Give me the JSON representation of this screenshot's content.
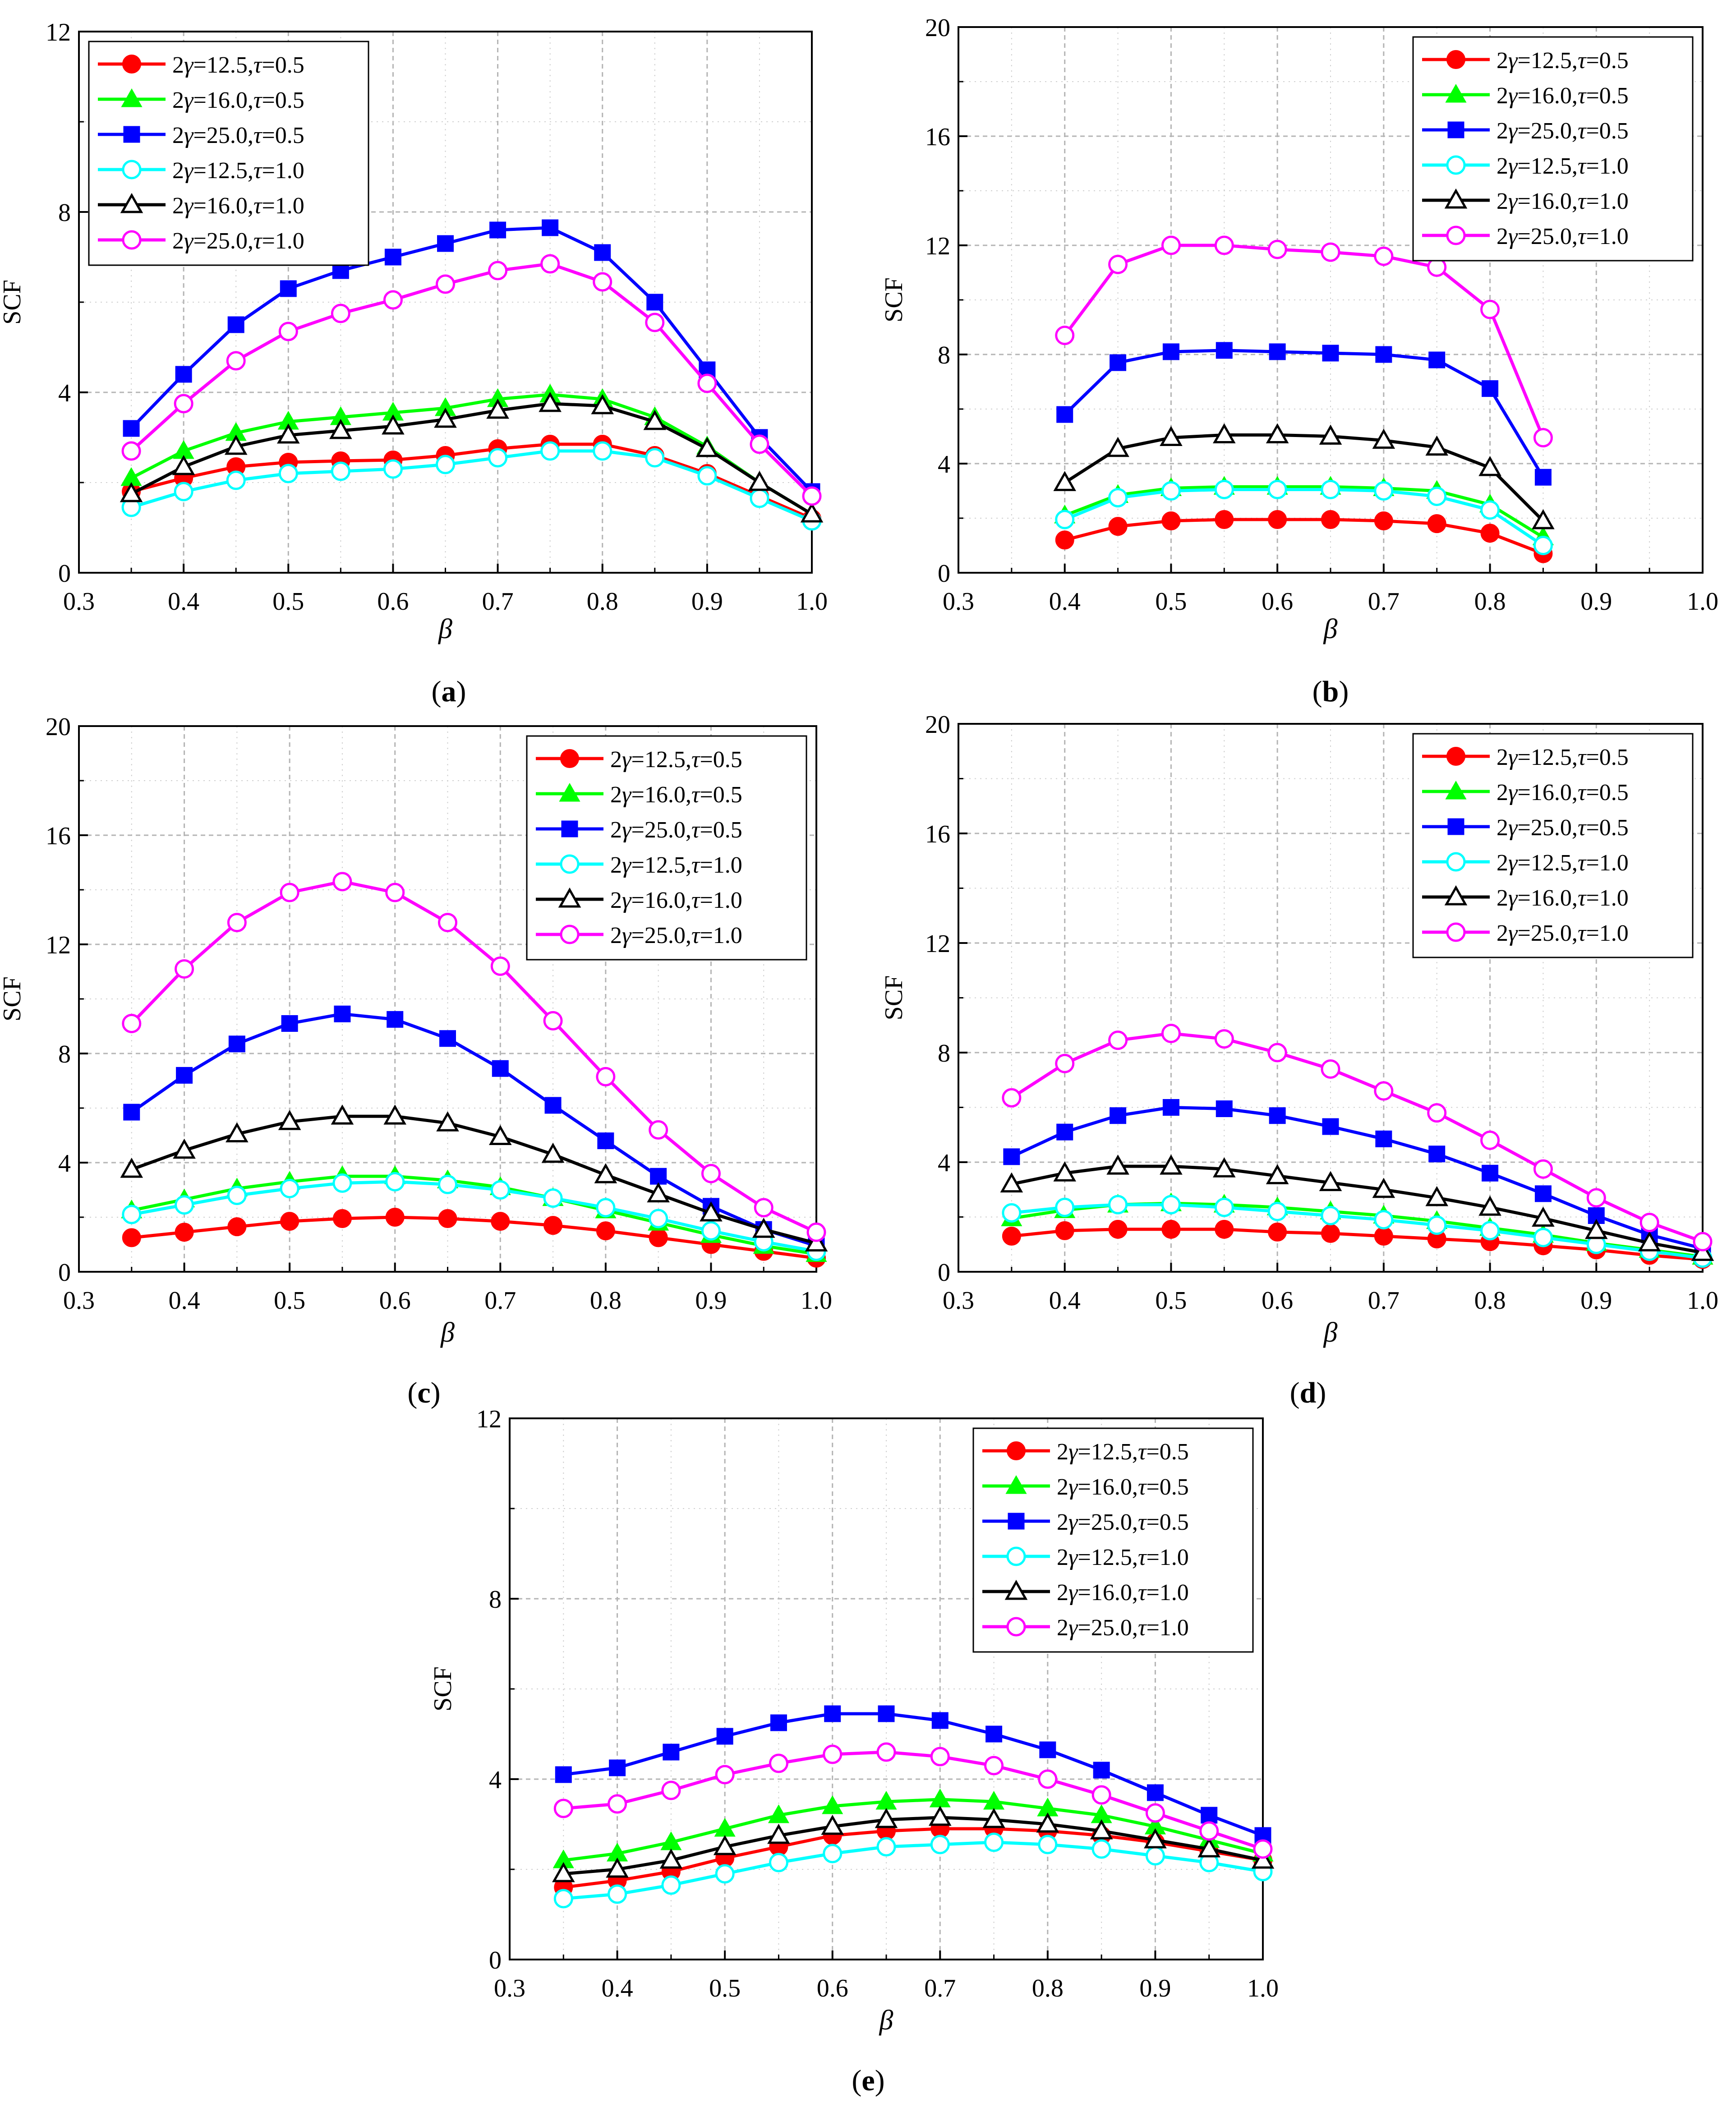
{
  "figure": {
    "legend_entries": [
      {
        "gamma": "12.5",
        "tau": "0.5"
      },
      {
        "gamma": "16.0",
        "tau": "0.5"
      },
      {
        "gamma": "25.0",
        "tau": "0.5"
      },
      {
        "gamma": "12.5",
        "tau": "1.0"
      },
      {
        "gamma": "16.0",
        "tau": "1.0"
      },
      {
        "gamma": "25.0",
        "tau": "1.0"
      }
    ],
    "legend_prefix": "2",
    "legend_gamma_symbol": "γ",
    "legend_tau_symbol": "τ",
    "legend_equals": "=",
    "legend_separator": ",",
    "colors": [
      "#ff0000",
      "#00ff00",
      "#0000ff",
      "#00ffff",
      "#000000",
      "#ff00ff"
    ],
    "markers": [
      "circle-filled",
      "triangle-filled",
      "square-filled",
      "circle-open",
      "triangle-open",
      "circle-open"
    ]
  },
  "chart_data": [
    {
      "type": "line",
      "panel_label": "(a)",
      "panel_letter": "a",
      "xlabel": "β",
      "ylabel": "SCF",
      "xlim": [
        0.3,
        1.0
      ],
      "ylim": [
        0,
        12
      ],
      "xticks": [
        "0.3",
        "0.4",
        "0.5",
        "0.6",
        "0.7",
        "0.8",
        "0.9",
        "1.0"
      ],
      "yticks": [
        "0",
        "4",
        "8",
        "12"
      ],
      "grid": true,
      "legend_position": "top-left",
      "x": [
        0.35,
        0.4,
        0.45,
        0.5,
        0.55,
        0.6,
        0.65,
        0.7,
        0.75,
        0.8,
        0.85,
        0.9,
        0.95,
        1.0
      ],
      "series": [
        {
          "name": "2γ=12.5,τ=0.5",
          "values": [
            1.8,
            2.1,
            2.35,
            2.45,
            2.48,
            2.5,
            2.6,
            2.75,
            2.85,
            2.85,
            2.6,
            2.2,
            1.7,
            1.2
          ]
        },
        {
          "name": "2γ=16.0,τ=0.5",
          "values": [
            2.1,
            2.7,
            3.1,
            3.35,
            3.45,
            3.55,
            3.65,
            3.85,
            3.95,
            3.85,
            3.45,
            2.8,
            2.0,
            1.3
          ]
        },
        {
          "name": "2γ=25.0,τ=0.5",
          "values": [
            3.2,
            4.4,
            5.5,
            6.3,
            6.7,
            7.0,
            7.3,
            7.6,
            7.65,
            7.1,
            6.0,
            4.5,
            3.0,
            1.8
          ]
        },
        {
          "name": "2γ=12.5,τ=1.0",
          "values": [
            1.45,
            1.8,
            2.05,
            2.2,
            2.25,
            2.3,
            2.4,
            2.55,
            2.7,
            2.7,
            2.55,
            2.15,
            1.65,
            1.15
          ]
        },
        {
          "name": "2γ=16.0,τ=1.0",
          "values": [
            1.75,
            2.35,
            2.8,
            3.05,
            3.15,
            3.25,
            3.4,
            3.6,
            3.75,
            3.7,
            3.35,
            2.75,
            2.0,
            1.3
          ]
        },
        {
          "name": "2γ=25.0,τ=1.0",
          "values": [
            2.7,
            3.75,
            4.7,
            5.35,
            5.75,
            6.05,
            6.4,
            6.7,
            6.85,
            6.45,
            5.55,
            4.2,
            2.85,
            1.7
          ]
        }
      ]
    },
    {
      "type": "line",
      "panel_label": "(b)",
      "panel_letter": "b",
      "xlabel": "β",
      "ylabel": "SCF",
      "xlim": [
        0.3,
        1.0
      ],
      "ylim": [
        0,
        20
      ],
      "xticks": [
        "0.3",
        "0.4",
        "0.5",
        "0.6",
        "0.7",
        "0.8",
        "0.9",
        "1.0"
      ],
      "yticks": [
        "0",
        "4",
        "8",
        "12",
        "16",
        "20"
      ],
      "grid": true,
      "legend_position": "top-right",
      "x": [
        0.4,
        0.45,
        0.5,
        0.55,
        0.6,
        0.65,
        0.7,
        0.75,
        0.8,
        0.85
      ],
      "series": [
        {
          "name": "2γ=12.5,τ=0.5",
          "values": [
            1.2,
            1.7,
            1.9,
            1.95,
            1.95,
            1.95,
            1.9,
            1.8,
            1.45,
            0.7
          ]
        },
        {
          "name": "2γ=16.0,τ=0.5",
          "values": [
            2.1,
            2.85,
            3.1,
            3.15,
            3.15,
            3.15,
            3.1,
            3.0,
            2.5,
            1.3
          ]
        },
        {
          "name": "2γ=25.0,τ=0.5",
          "values": [
            5.8,
            7.7,
            8.1,
            8.15,
            8.1,
            8.05,
            8.0,
            7.8,
            6.75,
            3.5
          ]
        },
        {
          "name": "2γ=12.5,τ=1.0",
          "values": [
            1.95,
            2.75,
            3.0,
            3.05,
            3.05,
            3.05,
            3.0,
            2.8,
            2.3,
            1.0
          ]
        },
        {
          "name": "2γ=16.0,τ=1.0",
          "values": [
            3.3,
            4.55,
            4.95,
            5.05,
            5.05,
            5.0,
            4.85,
            4.6,
            3.85,
            1.9
          ]
        },
        {
          "name": "2γ=25.0,τ=1.0",
          "values": [
            8.7,
            11.3,
            12.0,
            12.0,
            11.85,
            11.75,
            11.6,
            11.2,
            9.65,
            4.95
          ]
        }
      ]
    },
    {
      "type": "line",
      "panel_label": "(c)",
      "panel_letter": "c",
      "xlabel": "β",
      "ylabel": "SCF",
      "xlim": [
        0.3,
        1.0
      ],
      "ylim": [
        0,
        20
      ],
      "xticks": [
        "0.3",
        "0.4",
        "0.5",
        "0.6",
        "0.7",
        "0.8",
        "0.9",
        "1.0"
      ],
      "yticks": [
        "0",
        "4",
        "8",
        "12",
        "16",
        "20"
      ],
      "grid": true,
      "legend_position": "top-right",
      "x": [
        0.35,
        0.4,
        0.45,
        0.5,
        0.55,
        0.6,
        0.65,
        0.7,
        0.75,
        0.8,
        0.85,
        0.9,
        0.95,
        1.0
      ],
      "series": [
        {
          "name": "2γ=12.5,τ=0.5",
          "values": [
            1.25,
            1.45,
            1.65,
            1.85,
            1.95,
            2.0,
            1.95,
            1.85,
            1.7,
            1.5,
            1.25,
            1.0,
            0.75,
            0.5
          ]
        },
        {
          "name": "2γ=16.0,τ=0.5",
          "values": [
            2.25,
            2.65,
            3.05,
            3.3,
            3.5,
            3.5,
            3.35,
            3.1,
            2.7,
            2.25,
            1.8,
            1.35,
            0.95,
            0.65
          ]
        },
        {
          "name": "2γ=25.0,τ=0.5",
          "values": [
            5.85,
            7.2,
            8.35,
            9.1,
            9.45,
            9.25,
            8.55,
            7.45,
            6.1,
            4.8,
            3.5,
            2.4,
            1.55,
            0.95
          ]
        },
        {
          "name": "2γ=12.5,τ=1.0",
          "values": [
            2.1,
            2.45,
            2.8,
            3.05,
            3.25,
            3.3,
            3.2,
            3.0,
            2.7,
            2.35,
            1.95,
            1.5,
            1.1,
            0.75
          ]
        },
        {
          "name": "2γ=16.0,τ=1.0",
          "values": [
            3.75,
            4.45,
            5.05,
            5.5,
            5.7,
            5.7,
            5.45,
            4.95,
            4.3,
            3.55,
            2.85,
            2.15,
            1.55,
            1.05
          ]
        },
        {
          "name": "2γ=25.0,τ=1.0",
          "values": [
            9.1,
            11.1,
            12.8,
            13.9,
            14.3,
            13.9,
            12.8,
            11.2,
            9.2,
            7.15,
            5.2,
            3.6,
            2.35,
            1.45
          ]
        }
      ]
    },
    {
      "type": "line",
      "panel_label": "(d)",
      "panel_letter": "d",
      "xlabel": "β",
      "ylabel": "SCF",
      "xlim": [
        0.3,
        1.0
      ],
      "ylim": [
        0,
        20
      ],
      "xticks": [
        "0.3",
        "0.4",
        "0.5",
        "0.6",
        "0.7",
        "0.8",
        "0.9",
        "1.0"
      ],
      "yticks": [
        "0",
        "4",
        "8",
        "12",
        "16",
        "20"
      ],
      "grid": true,
      "legend_position": "top-right",
      "x": [
        0.35,
        0.4,
        0.45,
        0.5,
        0.55,
        0.6,
        0.65,
        0.7,
        0.75,
        0.8,
        0.85,
        0.9,
        0.95,
        1.0
      ],
      "series": [
        {
          "name": "2γ=12.5,τ=0.5",
          "values": [
            1.3,
            1.5,
            1.55,
            1.55,
            1.55,
            1.45,
            1.4,
            1.3,
            1.2,
            1.1,
            0.95,
            0.8,
            0.6,
            0.45
          ]
        },
        {
          "name": "2γ=16.0,τ=0.5",
          "values": [
            1.95,
            2.25,
            2.45,
            2.5,
            2.45,
            2.35,
            2.2,
            2.05,
            1.85,
            1.6,
            1.35,
            1.05,
            0.8,
            0.55
          ]
        },
        {
          "name": "2γ=25.0,τ=0.5",
          "values": [
            4.2,
            5.1,
            5.7,
            6.0,
            5.95,
            5.7,
            5.3,
            4.85,
            4.3,
            3.6,
            2.85,
            2.05,
            1.35,
            0.85
          ]
        },
        {
          "name": "2γ=12.5,τ=1.0",
          "values": [
            2.15,
            2.35,
            2.45,
            2.45,
            2.35,
            2.2,
            2.05,
            1.9,
            1.7,
            1.5,
            1.25,
            1.0,
            0.75,
            0.5
          ]
        },
        {
          "name": "2γ=16.0,τ=1.0",
          "values": [
            3.2,
            3.6,
            3.85,
            3.85,
            3.75,
            3.5,
            3.25,
            3.0,
            2.7,
            2.35,
            1.95,
            1.5,
            1.05,
            0.7
          ]
        },
        {
          "name": "2γ=25.0,τ=1.0",
          "values": [
            6.35,
            7.6,
            8.45,
            8.7,
            8.5,
            8.0,
            7.4,
            6.6,
            5.8,
            4.8,
            3.75,
            2.7,
            1.8,
            1.1
          ]
        }
      ]
    },
    {
      "type": "line",
      "panel_label": "(e)",
      "panel_letter": "e",
      "xlabel": "β",
      "ylabel": "SCF",
      "xlim": [
        0.3,
        1.0
      ],
      "ylim": [
        0,
        12
      ],
      "xticks": [
        "0.3",
        "0.4",
        "0.5",
        "0.6",
        "0.7",
        "0.8",
        "0.9",
        "1.0"
      ],
      "yticks": [
        "0",
        "4",
        "8",
        "12"
      ],
      "grid": true,
      "legend_position": "top-right",
      "x": [
        0.35,
        0.4,
        0.45,
        0.5,
        0.55,
        0.6,
        0.65,
        0.7,
        0.75,
        0.8,
        0.85,
        0.9,
        0.95,
        1.0
      ],
      "series": [
        {
          "name": "2γ=12.5,τ=0.5",
          "values": [
            1.6,
            1.75,
            1.95,
            2.25,
            2.5,
            2.75,
            2.85,
            2.9,
            2.9,
            2.85,
            2.75,
            2.6,
            2.4,
            2.2
          ]
        },
        {
          "name": "2γ=16.0,τ=0.5",
          "values": [
            2.2,
            2.35,
            2.6,
            2.9,
            3.2,
            3.4,
            3.5,
            3.55,
            3.5,
            3.35,
            3.2,
            2.95,
            2.65,
            2.35
          ]
        },
        {
          "name": "2γ=25.0,τ=0.5",
          "values": [
            4.1,
            4.25,
            4.6,
            4.95,
            5.25,
            5.45,
            5.45,
            5.3,
            5.0,
            4.65,
            4.2,
            3.7,
            3.2,
            2.75
          ]
        },
        {
          "name": "2γ=12.5,τ=1.0",
          "values": [
            1.35,
            1.45,
            1.65,
            1.9,
            2.15,
            2.35,
            2.5,
            2.55,
            2.6,
            2.55,
            2.45,
            2.3,
            2.15,
            1.95
          ]
        },
        {
          "name": "2γ=16.0,τ=1.0",
          "values": [
            1.9,
            2.0,
            2.2,
            2.5,
            2.75,
            2.95,
            3.1,
            3.15,
            3.1,
            3.0,
            2.85,
            2.65,
            2.45,
            2.2
          ]
        },
        {
          "name": "2γ=25.0,τ=1.0",
          "values": [
            3.35,
            3.45,
            3.75,
            4.1,
            4.35,
            4.55,
            4.6,
            4.5,
            4.3,
            4.0,
            3.65,
            3.25,
            2.85,
            2.45
          ]
        }
      ]
    }
  ]
}
